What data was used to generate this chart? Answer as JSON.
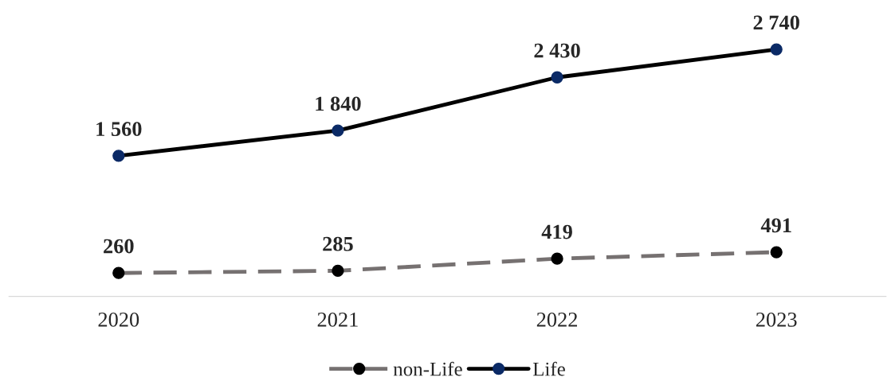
{
  "chart_data": {
    "type": "line",
    "categories": [
      "2020",
      "2021",
      "2022",
      "2023"
    ],
    "series": [
      {
        "name": "non-Life",
        "color": "#767171",
        "colors": [
          "#000000",
          "#000000",
          "#000000",
          "#000000"
        ],
        "line_style": "dashed",
        "values": [
          260,
          285,
          419,
          491
        ]
      },
      {
        "name": "Life",
        "color": "#000000",
        "colors": [
          "#0b2a66",
          "#0b2a66",
          "#0b2a66",
          "#0b2a66"
        ],
        "line_style": "solid",
        "values": [
          1560,
          1840,
          2430,
          2740
        ]
      }
    ],
    "marker": "circle",
    "data_labels": true,
    "legend": "bottom",
    "grid": false
  }
}
